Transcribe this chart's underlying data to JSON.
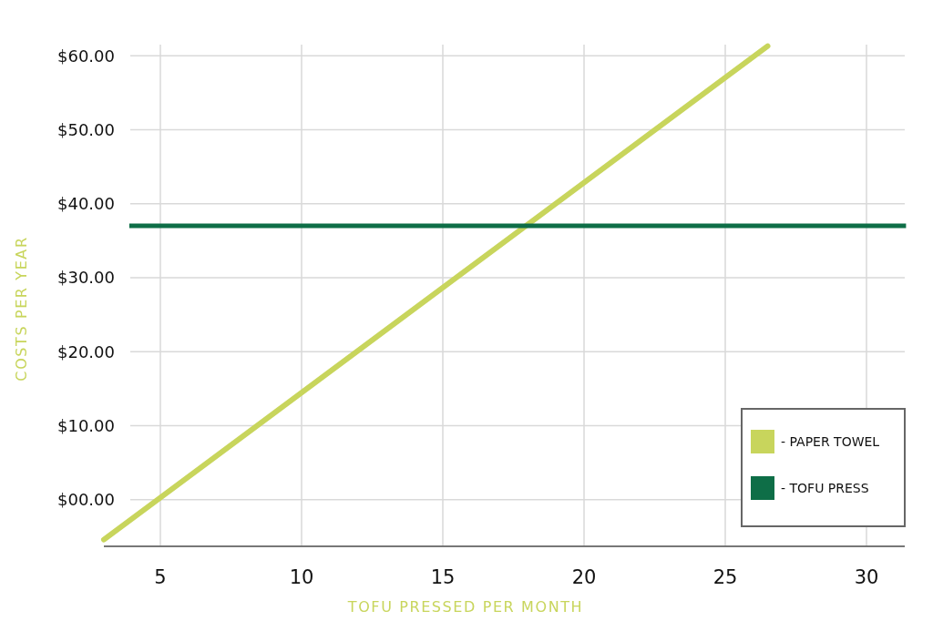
{
  "chart_data": {
    "type": "line",
    "xlabel": "TOFU PRESSED PER MONTH",
    "ylabel": "COSTS PER YEAR",
    "xlim": [
      3.0,
      31.4
    ],
    "ylim": [
      -6.3,
      61.5
    ],
    "xticks": [
      5,
      10,
      15,
      20,
      25,
      30
    ],
    "yticks": [
      {
        "value": 0,
        "label": "$00.00"
      },
      {
        "value": 10,
        "label": "$10.00"
      },
      {
        "value": 20,
        "label": "$20.00"
      },
      {
        "value": 30,
        "label": "$30.00"
      },
      {
        "value": 40,
        "label": "$40.00"
      },
      {
        "value": 50,
        "label": "$50.00"
      },
      {
        "value": 60,
        "label": "$60.00"
      }
    ],
    "grid": true,
    "legend": "bottom right",
    "series": [
      {
        "name": "- PAPER TOWEL",
        "color": "#c8d55c",
        "x": [
          3.0,
          26.5
        ],
        "values": [
          -5.4,
          61.3
        ]
      },
      {
        "name": "- TOFU PRESS",
        "color": "#0e6e47",
        "x": [
          3.9,
          31.4
        ],
        "values": [
          37,
          37
        ]
      }
    ]
  }
}
